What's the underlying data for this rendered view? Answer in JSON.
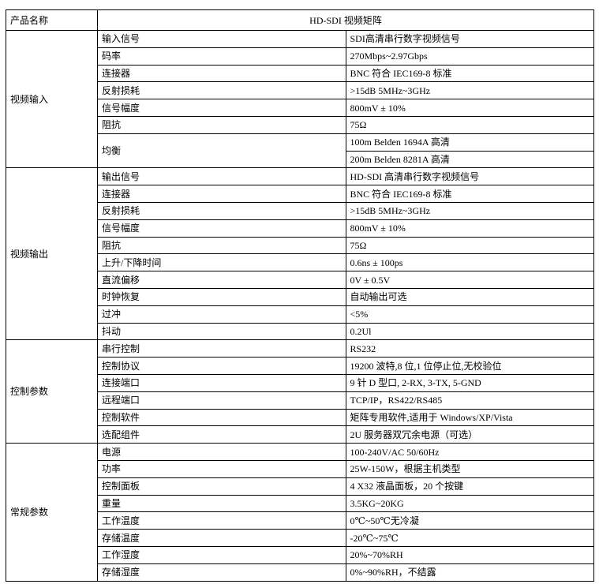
{
  "header": {
    "label": "产品名称",
    "value": "HD-SDI 视频矩阵"
  },
  "sections": [
    {
      "label": "视频输入",
      "rows": [
        {
          "label": "输入信号",
          "values": [
            "SDI高清串行数字视频信号"
          ]
        },
        {
          "label": "码率",
          "values": [
            "270Mbps~2.97Gbps"
          ]
        },
        {
          "label": "连接器",
          "values": [
            "BNC 符合 IEC169-8  标准"
          ]
        },
        {
          "label": "反射损耗",
          "values": [
            ">15dB 5MHz~3GHz"
          ]
        },
        {
          "label": "信号幅度",
          "values": [
            "800mV ± 10%"
          ]
        },
        {
          "label": "阻抗",
          "values": [
            "75Ω"
          ]
        },
        {
          "label": "均衡",
          "values": [
            "100m Belden 1694A 高清",
            "200m Belden 8281A 高清"
          ]
        }
      ]
    },
    {
      "label": "视频输出",
      "rows": [
        {
          "label": "输出信号",
          "values": [
            "HD-SDI 高清串行数字视频信号"
          ]
        },
        {
          "label": "连接器",
          "values": [
            "BNC 符合 IEC169-8  标准"
          ]
        },
        {
          "label": "反射损耗",
          "values": [
            ">15dB 5MHz~3GHz"
          ]
        },
        {
          "label": "信号幅度",
          "values": [
            "800mV ± 10%"
          ]
        },
        {
          "label": "阻抗",
          "values": [
            "75Ω"
          ]
        },
        {
          "label": "上升/下降时间",
          "values": [
            "0.6ns ± 100ps"
          ]
        },
        {
          "label": "直流偏移",
          "values": [
            "0V ± 0.5V"
          ]
        },
        {
          "label": "时钟恢复",
          "values": [
            "自动输出可选"
          ]
        },
        {
          "label": "过冲",
          "values": [
            "<5%"
          ]
        },
        {
          "label": "抖动",
          "values": [
            "0.2Ul"
          ]
        }
      ]
    },
    {
      "label": "控制参数",
      "rows": [
        {
          "label": "串行控制",
          "values": [
            "RS232"
          ]
        },
        {
          "label": "控制协议",
          "values": [
            "19200 波特,8 位,1 位停止位,无校验位"
          ]
        },
        {
          "label": "连接端口",
          "values": [
            "9 针 D 型口, 2-RX, 3-TX, 5-GND"
          ]
        },
        {
          "label": "远程端口",
          "values": [
            "TCP/IP，RS422/RS485"
          ]
        },
        {
          "label": "控制软件",
          "values": [
            "矩阵专用软件,适用于 Windows/XP/Vista"
          ]
        },
        {
          "label": "选配组件",
          "values": [
            "2U 服务器双冗余电源（可选）"
          ]
        }
      ]
    },
    {
      "label": "常规参数",
      "rows": [
        {
          "label": "电源",
          "values": [
            "100-240V/AC    50/60Hz"
          ]
        },
        {
          "label": "功率",
          "values": [
            "25W-150W，根据主机类型"
          ]
        },
        {
          "label": "控制面板",
          "values": [
            "4 X32 液晶面板，20 个按键"
          ]
        },
        {
          "label": "重量",
          "values": [
            "3.5KG~20KG"
          ]
        },
        {
          "label": "工作温度",
          "values": [
            "0℃~50℃无冷凝"
          ]
        },
        {
          "label": "存储温度",
          "values": [
            "-20℃~75℃"
          ]
        },
        {
          "label": "工作湿度",
          "values": [
            "20%~70%RH"
          ]
        },
        {
          "label": "存储湿度",
          "values": [
            "0%~90%RH，不结露"
          ]
        }
      ]
    }
  ]
}
